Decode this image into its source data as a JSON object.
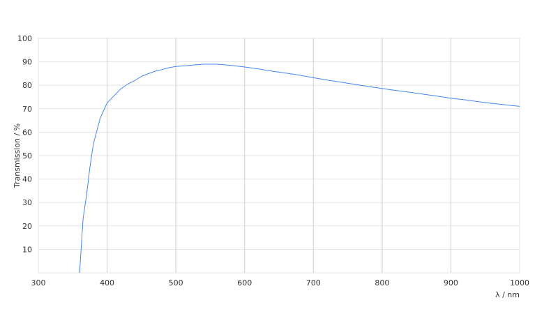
{
  "chart_data": {
    "type": "line",
    "title": "",
    "xlabel": "λ / nm",
    "ylabel": "Transmission / %",
    "xlim": [
      300,
      1000
    ],
    "ylim": [
      0,
      100
    ],
    "xticks": [
      300,
      400,
      500,
      600,
      700,
      800,
      900,
      1000
    ],
    "yticks": [
      10,
      20,
      30,
      40,
      50,
      60,
      70,
      80,
      90,
      100
    ],
    "grid": true,
    "color": "#4285f4",
    "series": [
      {
        "x": [
          360,
          365,
          370,
          375,
          380,
          390,
          400,
          410,
          420,
          430,
          440,
          450,
          460,
          470,
          480,
          490,
          500,
          520,
          540,
          560,
          580,
          600,
          620,
          640,
          660,
          680,
          700,
          720,
          740,
          760,
          780,
          800,
          820,
          840,
          860,
          880,
          900,
          920,
          940,
          960,
          980,
          1000
        ],
        "y": [
          0,
          23,
          33,
          45,
          55,
          66,
          72.5,
          75.5,
          78.5,
          80.5,
          82,
          83.8,
          85,
          86,
          86.7,
          87.5,
          88,
          88.5,
          89,
          89,
          88.5,
          87.8,
          87,
          86,
          85.2,
          84.3,
          83.2,
          82.2,
          81.3,
          80.4,
          79.5,
          78.6,
          77.8,
          77,
          76.2,
          75.4,
          74.5,
          73.8,
          73,
          72.3,
          71.6,
          71
        ]
      }
    ]
  }
}
